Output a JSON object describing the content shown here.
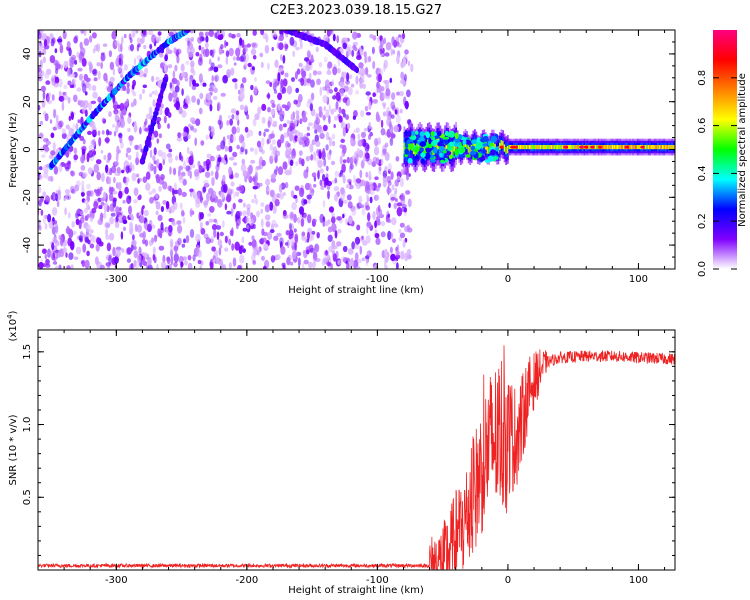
{
  "title": "C2E3.2023.039.18.15.G27",
  "chart_data": [
    {
      "type": "heatmap",
      "name": "spectrogram",
      "xlabel": "Height of straight line (km)",
      "ylabel": "Frequency (Hz)",
      "xlim": [
        -360,
        128
      ],
      "ylim": [
        -50,
        50
      ],
      "x_ticks": [
        "-300",
        "-200",
        "-100",
        "0",
        "100"
      ],
      "x_tick_values": [
        -300,
        -200,
        -100,
        0,
        100
      ],
      "y_ticks": [
        "-40",
        "-20",
        "0",
        "20",
        "40"
      ],
      "y_tick_values": [
        -40,
        -20,
        0,
        20,
        40
      ],
      "noise_region_x": [
        -360,
        -75
      ],
      "carrier_line": {
        "frequency": 1,
        "x_start": -80,
        "x_end": 128
      },
      "diagonal_traces": [
        {
          "x": [
            -350,
            -320,
            -290,
            -260,
            -245
          ],
          "y": [
            -7,
            13,
            31,
            45,
            50
          ]
        },
        {
          "x": [
            -170,
            -140,
            -115
          ],
          "y": [
            50,
            44,
            33
          ]
        },
        {
          "x": [
            -280,
            -262
          ],
          "y": [
            -5,
            30
          ]
        }
      ],
      "colorbar": {
        "label": "Normalized spectral amplitude",
        "range": [
          0,
          1
        ],
        "ticks": [
          "0.0",
          "0.2",
          "0.4",
          "0.6",
          "0.8"
        ],
        "tick_values": [
          0,
          0.2,
          0.4,
          0.6,
          0.8
        ],
        "colors": [
          "#ffffff",
          "#8000ff",
          "#0000ff",
          "#00ffff",
          "#00ff00",
          "#ffff00",
          "#ff8000",
          "#ff0000",
          "#ff0080"
        ]
      }
    },
    {
      "type": "line",
      "name": "snr",
      "xlabel": "Height of straight line (km)",
      "ylabel": "SNR (10 * v/v)",
      "y_multiplier": "(x10",
      "y_multiplier_exp": "4",
      "y_multiplier_close": ")",
      "xlim": [
        -360,
        128
      ],
      "ylim": [
        0,
        1.65
      ],
      "x_ticks": [
        "-300",
        "-200",
        "-100",
        "0",
        "100"
      ],
      "x_tick_values": [
        -300,
        -200,
        -100,
        0,
        100
      ],
      "y_ticks": [
        "0.5",
        "1.0",
        "1.5"
      ],
      "y_tick_values": [
        0.5,
        1.0,
        1.5
      ],
      "color": "#ee2222",
      "profile": {
        "x": [
          -360,
          -250,
          -150,
          -60,
          -50,
          -45,
          -40,
          -35,
          -30,
          -25,
          -20,
          -15,
          -10,
          -5,
          0,
          5,
          10,
          15,
          20,
          25,
          30,
          40,
          60,
          80,
          100,
          128
        ],
        "y": [
          0.03,
          0.03,
          0.03,
          0.03,
          0.06,
          0.12,
          0.22,
          0.3,
          0.4,
          0.55,
          0.7,
          0.85,
          0.9,
          0.95,
          0.95,
          0.9,
          1.0,
          1.2,
          1.3,
          1.38,
          1.43,
          1.46,
          1.47,
          1.47,
          1.46,
          1.45
        ]
      }
    }
  ]
}
